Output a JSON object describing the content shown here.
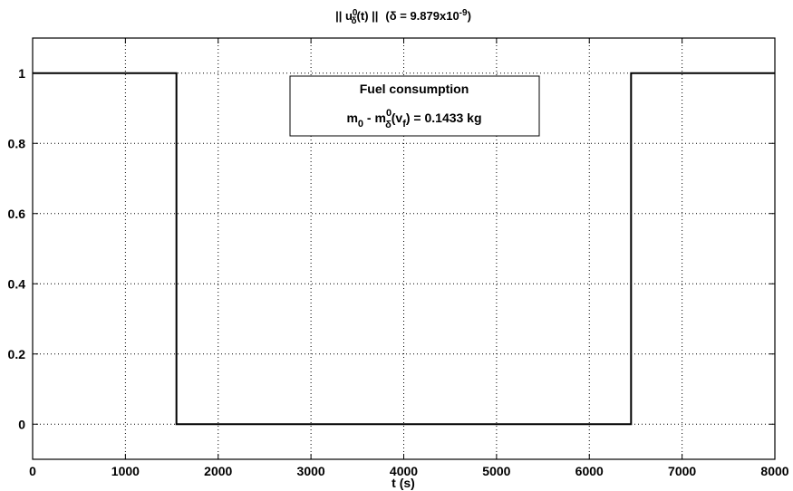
{
  "chart_data": {
    "type": "line",
    "title": {
      "norm_open": "|| u",
      "norm_sup": "0",
      "norm_sub": "δ",
      "norm_close": "(t) ||",
      "delta_open": "(δ = 9.879x10",
      "delta_exp": "-9",
      "delta_close": ")"
    },
    "xlabel": "t (s)",
    "ylabel": "",
    "xlim": [
      0,
      8000
    ],
    "ylim": [
      -0.1,
      1.1
    ],
    "xticks": [
      0,
      1000,
      2000,
      3000,
      4000,
      5000,
      6000,
      7000,
      8000
    ],
    "yticks": [
      0,
      0.2,
      0.4,
      0.6,
      0.8,
      1
    ],
    "grid": true,
    "series": [
      {
        "x": [
          0,
          1550,
          1550,
          6450,
          6450,
          8000
        ],
        "y": [
          1,
          1,
          0,
          0,
          1,
          1
        ]
      }
    ],
    "annotation": {
      "title": "Fuel consumption",
      "eq_m": "m",
      "eq_sub0": "0",
      "eq_mid": " - m",
      "eq_sup0": "0",
      "eq_subd": "δ",
      "eq_paren": "(v",
      "eq_subf": "f",
      "eq_rest": ") = 0.1433 kg"
    }
  }
}
